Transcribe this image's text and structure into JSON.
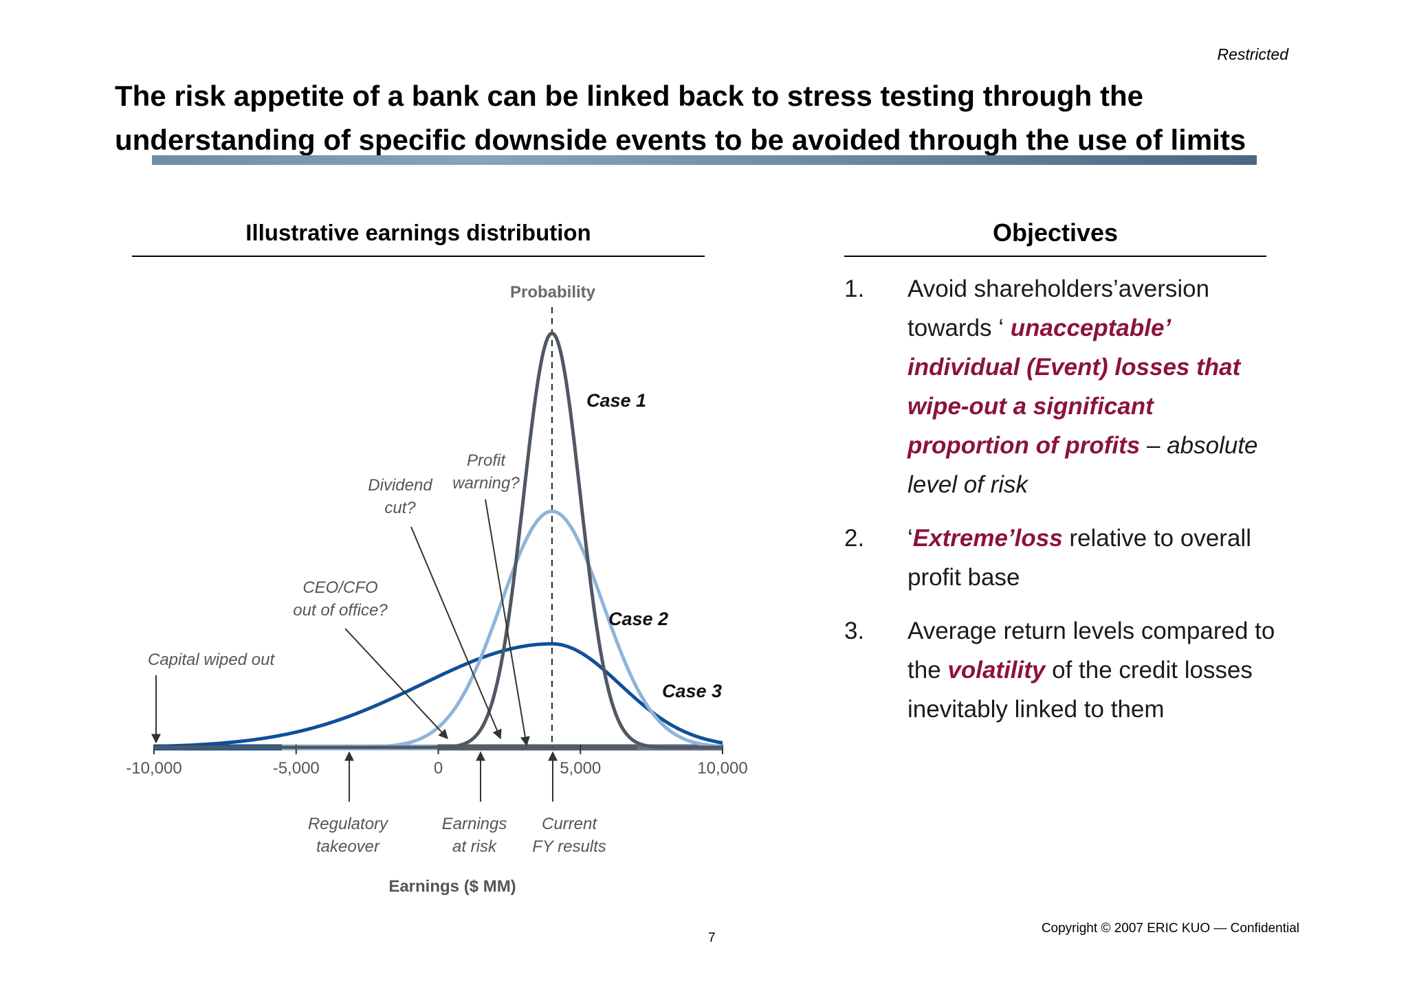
{
  "header": {
    "classification": "Restricted",
    "title": "The risk appetite of a bank can be linked back to stress testing through the understanding of specific downside events to be avoided through the use of limits"
  },
  "left_column": {
    "heading": "Illustrative earnings distribution"
  },
  "chart_data": {
    "type": "line",
    "title": "",
    "ylabel": "Probability",
    "xlabel": "Earnings ($ MM)",
    "xlim": [
      -10000,
      10000
    ],
    "x_ticks": [
      "-10,000",
      "-5,000",
      "0",
      "5,000",
      "10,000"
    ],
    "reference_line": {
      "label": "Current FY results",
      "x": 4000
    },
    "series": [
      {
        "name": "Case 1",
        "type": "normal",
        "mean": 4000,
        "sd": 1000,
        "relative_peak": 1.0,
        "color": "#4f5863"
      },
      {
        "name": "Case 2",
        "type": "normal",
        "mean": 4000,
        "sd": 1800,
        "relative_peak": 0.57,
        "color": "#8fb4da"
      },
      {
        "name": "Case 3",
        "type": "skewed",
        "mode": 4000,
        "relative_peak": 0.25,
        "color": "#104f9a"
      }
    ],
    "events_above_axis": [
      {
        "label": "Capital wiped out",
        "x": -10000
      },
      {
        "label": "CEO/CFO out of office?",
        "x": 400
      },
      {
        "label": "Dividend cut?",
        "x": 2200
      },
      {
        "label": "Profit warning?",
        "x": 3100
      }
    ],
    "events_below_axis": [
      {
        "label": "Regulatory takeover",
        "x": -3000
      },
      {
        "label": "Earnings at risk",
        "x": 1500
      },
      {
        "label": "Current FY results",
        "x": 4000
      }
    ]
  },
  "chart_labels": {
    "probability": "Probability",
    "xlabel": "Earnings ($ MM)",
    "case1": "Case 1",
    "case2": "Case 2",
    "case3": "Case 3",
    "capital_wiped_out": "Capital wiped out",
    "ceo_line1": "CEO/CFO",
    "ceo_line2": "out of office?",
    "dividend_line1": "Dividend",
    "dividend_line2": "cut?",
    "profit_line1": "Profit",
    "profit_line2": "warning?",
    "regulatory_line1": "Regulatory",
    "regulatory_line2": "takeover",
    "ear_line1": "Earnings",
    "ear_line2": "at risk",
    "current_line1": "Current",
    "current_line2": "FY results"
  },
  "right_column": {
    "heading": "Objectives",
    "items": [
      {
        "number": "1.",
        "text_a": "Avoid shareholders’aversion towards ‘ ",
        "highlight": "unacceptable’ individual (Event) losses that wipe-out a significant proportion of profits",
        "text_b": " – ",
        "italic": "absolute level of risk"
      },
      {
        "number": "2.",
        "text_a": "‘",
        "highlight": "Extreme’loss",
        "text_b": " relative to overall profit base"
      },
      {
        "number": "3.",
        "text_a": "Average return levels compared to the ",
        "highlight": "volatility",
        "text_b": " of the credit losses inevitably linked to them"
      }
    ]
  },
  "footer": {
    "copyright": "Copyright © 2007 ERIC KUO — Confidential",
    "page_number": "7"
  }
}
